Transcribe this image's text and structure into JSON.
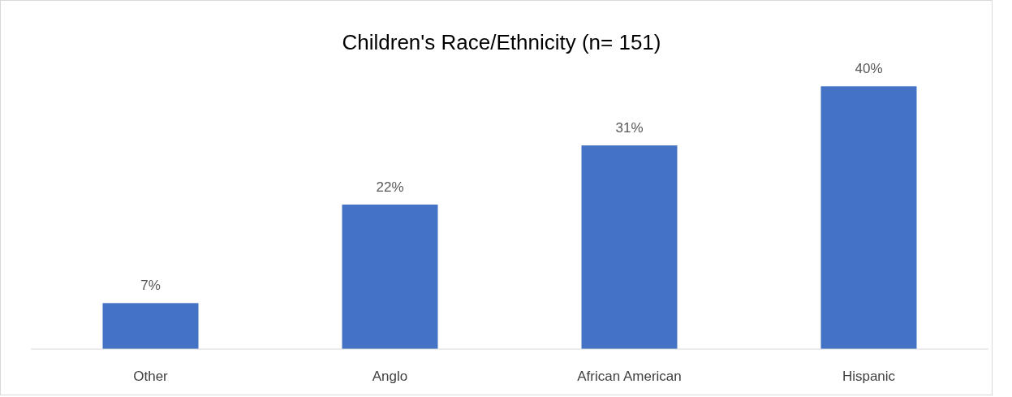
{
  "chart_data": {
    "type": "bar",
    "title": "Children's Race/Ethnicity (n= 151)",
    "categories": [
      "Other",
      "Anglo",
      "African American",
      "Hispanic"
    ],
    "values": [
      7,
      22,
      31,
      40
    ],
    "color": "#4472c4",
    "value_labels": [
      "7%",
      "22%",
      "31%",
      "40%"
    ]
  }
}
